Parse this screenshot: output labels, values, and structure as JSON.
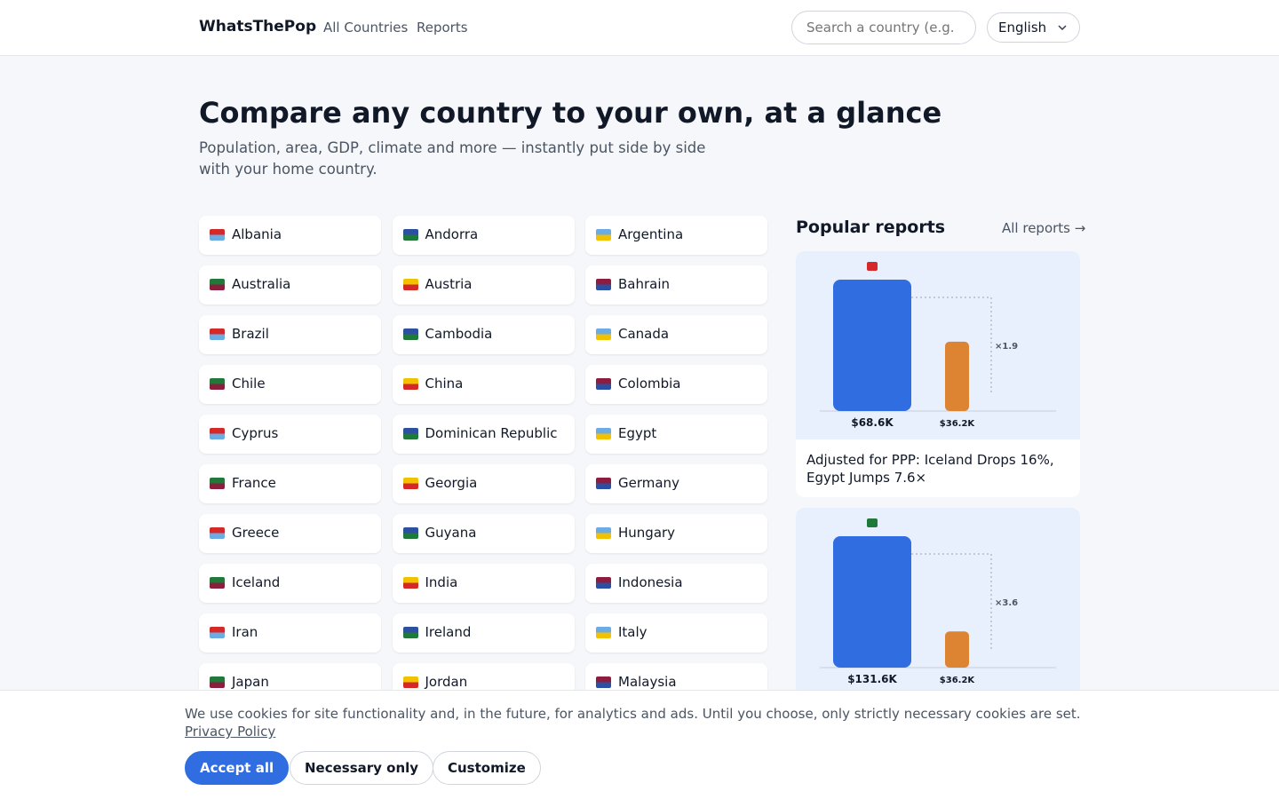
{
  "header": {
    "brand": "WhatsThePop",
    "nav": [
      "All Countries",
      "Reports"
    ],
    "search_placeholder": "Search a country (e.g.",
    "language": "English"
  },
  "hero": {
    "title": "Compare any country to your own, at a glance",
    "subtitle": "Population, area, GDP, climate and more — instantly put side by side with your home country."
  },
  "countries": [
    "Albania",
    "Andorra",
    "Argentina",
    "Australia",
    "Austria",
    "Bahrain",
    "Brazil",
    "Cambodia",
    "Canada",
    "Chile",
    "China",
    "Colombia",
    "Cyprus",
    "Dominican Republic",
    "Egypt",
    "France",
    "Georgia",
    "Germany",
    "Greece",
    "Guyana",
    "Hungary",
    "Iceland",
    "India",
    "Indonesia",
    "Iran",
    "Ireland",
    "Italy",
    "Japan",
    "Jordan",
    "Malaysia"
  ],
  "reports": {
    "title": "Popular reports",
    "link": "All reports →",
    "cards": [
      {
        "bars": [
          {
            "value": 68600,
            "label": "$68.6K"
          },
          {
            "value": 36200,
            "label": "$36.2K"
          }
        ],
        "ratio": "×1.9",
        "caption": "Adjusted for PPP: Iceland Drops 16%, Egypt Jumps 7.6×"
      },
      {
        "bars": [
          {
            "value": 131600,
            "label": "$131.6K"
          },
          {
            "value": 36200,
            "label": "$36.2K"
          }
        ],
        "ratio": "×3.6"
      }
    ]
  },
  "cookie": {
    "text": "We use cookies for site functionality and, in the future, for analytics and ads. Until you choose, only strictly necessary cookies are set.",
    "link": "Privacy Policy",
    "buttons": [
      "Accept all",
      "Necessary only",
      "Customize"
    ]
  }
}
